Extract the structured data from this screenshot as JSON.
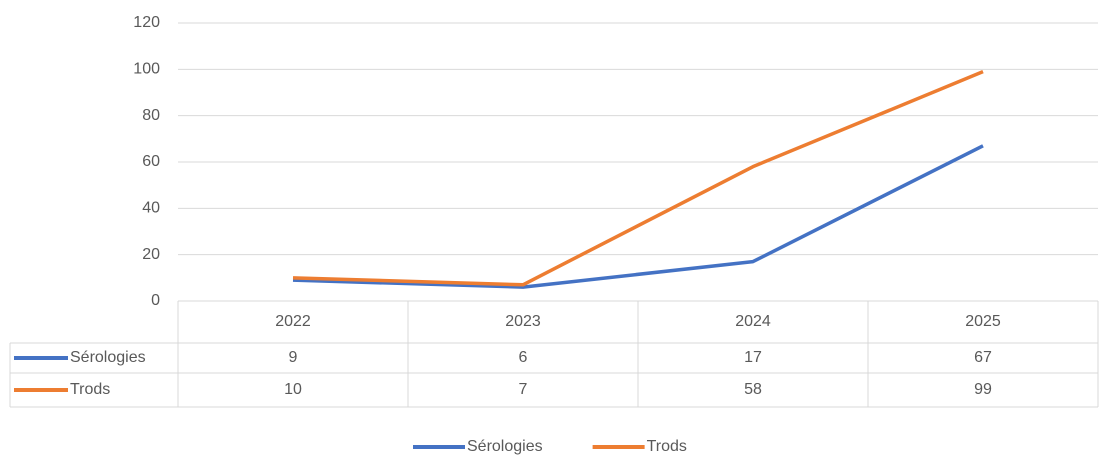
{
  "chart_data": {
    "type": "line",
    "categories": [
      "2022",
      "2023",
      "2024",
      "2025"
    ],
    "series": [
      {
        "name": "Sérologies",
        "color": "#4472c4",
        "values": [
          9,
          6,
          17,
          67
        ]
      },
      {
        "name": "Trods",
        "color": "#ed7d31",
        "values": [
          10,
          7,
          58,
          99
        ]
      }
    ],
    "ylim": [
      0,
      120
    ],
    "yticks": [
      0,
      20,
      40,
      60,
      80,
      100,
      120
    ],
    "grid": true,
    "legend": "bottom",
    "data_table": true
  }
}
